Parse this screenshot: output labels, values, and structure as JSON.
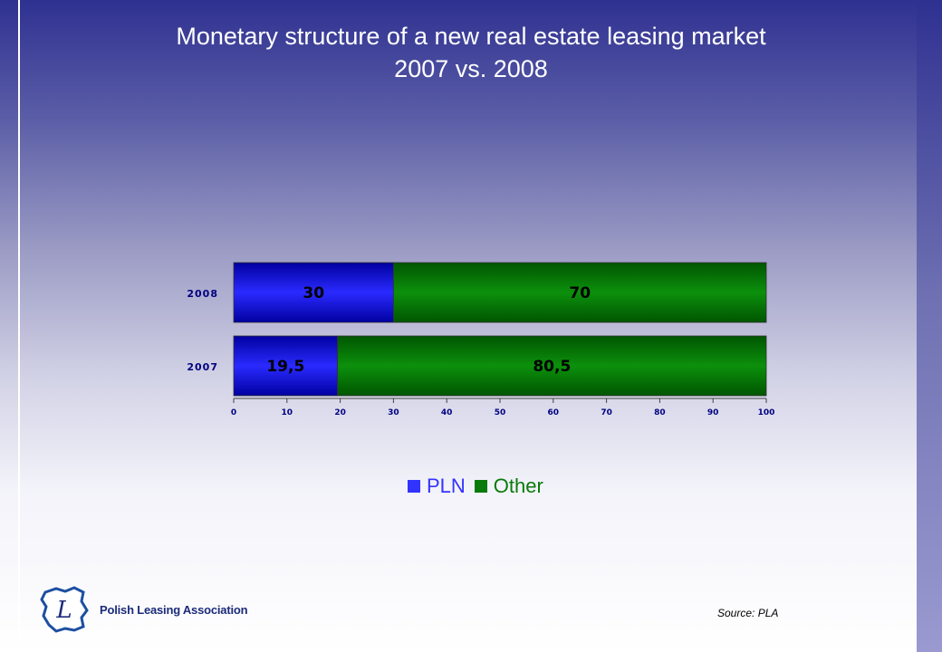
{
  "title": {
    "line1": "Monetary structure of a new real estate leasing market",
    "line2": "2007 vs. 2008"
  },
  "chart_data": {
    "type": "bar",
    "orientation": "horizontal",
    "stacked": true,
    "categories": [
      "2008",
      "2007"
    ],
    "series": [
      {
        "name": "PLN",
        "values": [
          30,
          19.5
        ],
        "labels": [
          "30",
          "19,5"
        ],
        "color": "#1a1aff"
      },
      {
        "name": "Other",
        "values": [
          70,
          80.5
        ],
        "labels": [
          "70",
          "80,5"
        ],
        "color": "#0a8a0a"
      }
    ],
    "xlim": [
      0,
      100
    ],
    "xticks": [
      "0",
      "10",
      "20",
      "30",
      "40",
      "50",
      "60",
      "70",
      "80",
      "90",
      "100"
    ],
    "legend_position": "bottom",
    "grid": false
  },
  "legend": {
    "items": [
      {
        "label": "PLN",
        "color": "#3333ff"
      },
      {
        "label": "Other",
        "color": "#0a7a0a"
      }
    ]
  },
  "source": "Source: PLA",
  "logo": {
    "letter": "L",
    "text": "Polish Leasing Association",
    "icon": "poland-map-logo-icon"
  }
}
